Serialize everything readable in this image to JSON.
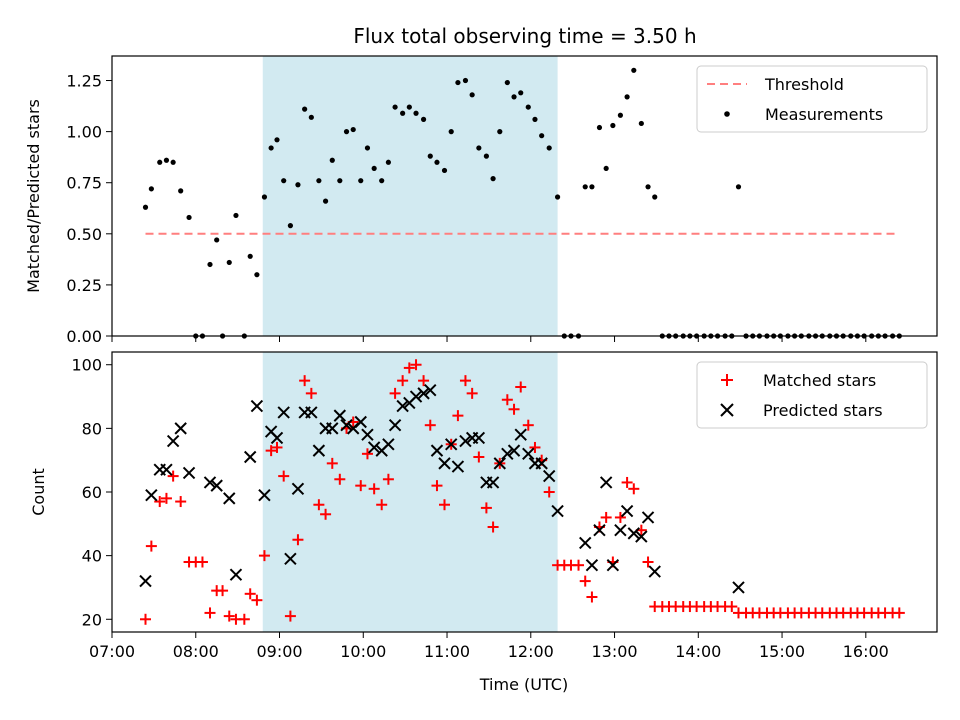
{
  "title": "Flux total observing time = 3.50 h",
  "xlabel": "Time (UTC)",
  "colors": {
    "threshold": "#ff7f7f",
    "shade": "#add8e6",
    "matched": "#ff0000",
    "predicted": "#000000",
    "measurement": "#000000"
  },
  "chart_data": [
    {
      "type": "scatter",
      "ylabel": "Matched/Predicted stars",
      "ylim": [
        0,
        1.37
      ],
      "yticks": [
        0,
        0.25,
        0.5,
        0.75,
        1.0,
        1.25
      ],
      "ytick_labels": [
        "0.00",
        "0.25",
        "0.50",
        "0.75",
        "1.00",
        "1.25"
      ],
      "xlim": [
        7.0,
        16.85
      ],
      "xticks": [
        7,
        8,
        9,
        10,
        11,
        12,
        13,
        14,
        15,
        16
      ],
      "xtick_labels": [
        "07:00",
        "08:00",
        "09:00",
        "10:00",
        "11:00",
        "12:00",
        "13:00",
        "14:00",
        "15:00",
        "16:00"
      ],
      "shaded_interval": [
        8.8,
        12.32
      ],
      "threshold": {
        "name": "Threshold",
        "x": [
          7.4,
          16.4
        ],
        "y": 0.5
      },
      "legend": [
        "Threshold",
        "Measurements"
      ],
      "measurements": [
        [
          7.4,
          0.63
        ],
        [
          7.47,
          0.72
        ],
        [
          7.57,
          0.85
        ],
        [
          7.65,
          0.86
        ],
        [
          7.73,
          0.85
        ],
        [
          7.82,
          0.71
        ],
        [
          7.92,
          0.58
        ],
        [
          8.0,
          0.0
        ],
        [
          8.08,
          0.0
        ],
        [
          8.17,
          0.35
        ],
        [
          8.25,
          0.47
        ],
        [
          8.32,
          0.0
        ],
        [
          8.4,
          0.36
        ],
        [
          8.48,
          0.59
        ],
        [
          8.58,
          0.0
        ],
        [
          8.65,
          0.39
        ],
        [
          8.73,
          0.3
        ],
        [
          8.82,
          0.68
        ],
        [
          8.9,
          0.92
        ],
        [
          8.97,
          0.96
        ],
        [
          9.05,
          0.76
        ],
        [
          9.13,
          0.54
        ],
        [
          9.22,
          0.74
        ],
        [
          9.3,
          1.11
        ],
        [
          9.38,
          1.07
        ],
        [
          9.47,
          0.76
        ],
        [
          9.55,
          0.66
        ],
        [
          9.63,
          0.86
        ],
        [
          9.72,
          0.76
        ],
        [
          9.8,
          1.0
        ],
        [
          9.88,
          1.01
        ],
        [
          9.97,
          0.76
        ],
        [
          10.05,
          0.92
        ],
        [
          10.13,
          0.82
        ],
        [
          10.22,
          0.76
        ],
        [
          10.3,
          0.85
        ],
        [
          10.38,
          1.12
        ],
        [
          10.47,
          1.09
        ],
        [
          10.55,
          1.12
        ],
        [
          10.63,
          1.09
        ],
        [
          10.72,
          1.06
        ],
        [
          10.8,
          0.88
        ],
        [
          10.88,
          0.85
        ],
        [
          10.97,
          0.81
        ],
        [
          11.05,
          1.0
        ],
        [
          11.13,
          1.24
        ],
        [
          11.22,
          1.25
        ],
        [
          11.3,
          1.18
        ],
        [
          11.38,
          0.92
        ],
        [
          11.47,
          0.88
        ],
        [
          11.55,
          0.77
        ],
        [
          11.63,
          1.0
        ],
        [
          11.72,
          1.24
        ],
        [
          11.8,
          1.17
        ],
        [
          11.88,
          1.19
        ],
        [
          11.97,
          1.12
        ],
        [
          12.05,
          1.06
        ],
        [
          12.13,
          0.98
        ],
        [
          12.22,
          0.92
        ],
        [
          12.32,
          0.68
        ],
        [
          12.4,
          0.0
        ],
        [
          12.48,
          0.0
        ],
        [
          12.57,
          0.0
        ],
        [
          12.65,
          0.73
        ],
        [
          12.73,
          0.73
        ],
        [
          12.82,
          1.02
        ],
        [
          12.9,
          0.82
        ],
        [
          12.98,
          1.03
        ],
        [
          13.07,
          1.08
        ],
        [
          13.15,
          1.17
        ],
        [
          13.23,
          1.3
        ],
        [
          13.32,
          1.04
        ],
        [
          13.4,
          0.73
        ],
        [
          13.48,
          0.68
        ],
        [
          13.57,
          0.0
        ],
        [
          13.65,
          0.0
        ],
        [
          13.73,
          0.0
        ],
        [
          13.82,
          0.0
        ],
        [
          13.9,
          0.0
        ],
        [
          13.98,
          0.0
        ],
        [
          14.07,
          0.0
        ],
        [
          14.15,
          0.0
        ],
        [
          14.23,
          0.0
        ],
        [
          14.32,
          0.0
        ],
        [
          14.4,
          0.0
        ],
        [
          14.48,
          0.73
        ],
        [
          14.57,
          0.0
        ],
        [
          14.65,
          0.0
        ],
        [
          14.73,
          0.0
        ],
        [
          14.82,
          0.0
        ],
        [
          14.9,
          0.0
        ],
        [
          14.98,
          0.0
        ],
        [
          15.07,
          0.0
        ],
        [
          15.15,
          0.0
        ],
        [
          15.23,
          0.0
        ],
        [
          15.32,
          0.0
        ],
        [
          15.4,
          0.0
        ],
        [
          15.48,
          0.0
        ],
        [
          15.57,
          0.0
        ],
        [
          15.65,
          0.0
        ],
        [
          15.73,
          0.0
        ],
        [
          15.82,
          0.0
        ],
        [
          15.9,
          0.0
        ],
        [
          15.98,
          0.0
        ],
        [
          16.07,
          0.0
        ],
        [
          16.15,
          0.0
        ],
        [
          16.23,
          0.0
        ],
        [
          16.32,
          0.0
        ],
        [
          16.4,
          0.0
        ]
      ]
    },
    {
      "type": "scatter",
      "ylabel": "Count",
      "ylim": [
        16,
        104
      ],
      "yticks": [
        20,
        40,
        60,
        80,
        100
      ],
      "ytick_labels": [
        "20",
        "40",
        "60",
        "80",
        "100"
      ],
      "xlim": [
        7.0,
        16.85
      ],
      "xticks": [
        7,
        8,
        9,
        10,
        11,
        12,
        13,
        14,
        15,
        16
      ],
      "xtick_labels": [
        "07:00",
        "08:00",
        "09:00",
        "10:00",
        "11:00",
        "12:00",
        "13:00",
        "14:00",
        "15:00",
        "16:00"
      ],
      "shaded_interval": [
        8.8,
        12.32
      ],
      "legend": [
        "Matched stars",
        "Predicted stars"
      ],
      "series": [
        {
          "name": "Matched stars",
          "marker": "+",
          "points": [
            [
              7.4,
              20
            ],
            [
              7.47,
              43
            ],
            [
              7.57,
              57
            ],
            [
              7.65,
              58
            ],
            [
              7.73,
              65
            ],
            [
              7.82,
              57
            ],
            [
              7.92,
              38
            ],
            [
              8.0,
              38
            ],
            [
              8.08,
              38
            ],
            [
              8.17,
              22
            ],
            [
              8.25,
              29
            ],
            [
              8.32,
              29
            ],
            [
              8.4,
              21
            ],
            [
              8.48,
              20
            ],
            [
              8.58,
              20
            ],
            [
              8.65,
              28
            ],
            [
              8.73,
              26
            ],
            [
              8.82,
              40
            ],
            [
              8.9,
              73
            ],
            [
              8.97,
              74
            ],
            [
              9.05,
              65
            ],
            [
              9.13,
              21
            ],
            [
              9.22,
              45
            ],
            [
              9.3,
              95
            ],
            [
              9.38,
              91
            ],
            [
              9.47,
              56
            ],
            [
              9.55,
              53
            ],
            [
              9.63,
              69
            ],
            [
              9.72,
              64
            ],
            [
              9.8,
              80
            ],
            [
              9.88,
              82
            ],
            [
              9.97,
              62
            ],
            [
              10.05,
              72
            ],
            [
              10.13,
              61
            ],
            [
              10.22,
              56
            ],
            [
              10.3,
              64
            ],
            [
              10.38,
              91
            ],
            [
              10.47,
              95
            ],
            [
              10.55,
              99
            ],
            [
              10.63,
              100
            ],
            [
              10.72,
              95
            ],
            [
              10.8,
              81
            ],
            [
              10.88,
              62
            ],
            [
              10.97,
              56
            ],
            [
              11.05,
              75
            ],
            [
              11.13,
              84
            ],
            [
              11.22,
              95
            ],
            [
              11.3,
              91
            ],
            [
              11.38,
              71
            ],
            [
              11.47,
              55
            ],
            [
              11.55,
              49
            ],
            [
              11.63,
              69
            ],
            [
              11.72,
              89
            ],
            [
              11.8,
              86
            ],
            [
              11.88,
              93
            ],
            [
              11.97,
              81
            ],
            [
              12.05,
              74
            ],
            [
              12.13,
              70
            ],
            [
              12.22,
              60
            ],
            [
              12.32,
              37
            ],
            [
              12.4,
              37
            ],
            [
              12.48,
              37
            ],
            [
              12.57,
              37
            ],
            [
              12.65,
              32
            ],
            [
              12.73,
              27
            ],
            [
              12.82,
              49
            ],
            [
              12.9,
              52
            ],
            [
              12.98,
              38
            ],
            [
              13.07,
              52
            ],
            [
              13.15,
              63
            ],
            [
              13.23,
              61
            ],
            [
              13.32,
              48
            ],
            [
              13.4,
              38
            ],
            [
              13.48,
              24
            ],
            [
              13.57,
              24
            ],
            [
              13.65,
              24
            ],
            [
              13.73,
              24
            ],
            [
              13.82,
              24
            ],
            [
              13.9,
              24
            ],
            [
              13.98,
              24
            ],
            [
              14.07,
              24
            ],
            [
              14.15,
              24
            ],
            [
              14.23,
              24
            ],
            [
              14.32,
              24
            ],
            [
              14.4,
              24
            ],
            [
              14.48,
              22
            ],
            [
              14.57,
              22
            ],
            [
              14.65,
              22
            ],
            [
              14.73,
              22
            ],
            [
              14.82,
              22
            ],
            [
              14.9,
              22
            ],
            [
              14.98,
              22
            ],
            [
              15.07,
              22
            ],
            [
              15.15,
              22
            ],
            [
              15.23,
              22
            ],
            [
              15.32,
              22
            ],
            [
              15.4,
              22
            ],
            [
              15.48,
              22
            ],
            [
              15.57,
              22
            ],
            [
              15.65,
              22
            ],
            [
              15.73,
              22
            ],
            [
              15.82,
              22
            ],
            [
              15.9,
              22
            ],
            [
              15.98,
              22
            ],
            [
              16.07,
              22
            ],
            [
              16.15,
              22
            ],
            [
              16.23,
              22
            ],
            [
              16.32,
              22
            ],
            [
              16.4,
              22
            ]
          ]
        },
        {
          "name": "Predicted stars",
          "marker": "x",
          "points": [
            [
              7.4,
              32
            ],
            [
              7.47,
              59
            ],
            [
              7.57,
              67
            ],
            [
              7.65,
              67
            ],
            [
              7.73,
              76
            ],
            [
              7.82,
              80
            ],
            [
              7.92,
              66
            ],
            [
              8.17,
              63
            ],
            [
              8.25,
              62
            ],
            [
              8.4,
              58
            ],
            [
              8.48,
              34
            ],
            [
              8.65,
              71
            ],
            [
              8.73,
              87
            ],
            [
              8.82,
              59
            ],
            [
              8.9,
              79
            ],
            [
              8.97,
              77
            ],
            [
              9.05,
              85
            ],
            [
              9.13,
              39
            ],
            [
              9.22,
              61
            ],
            [
              9.3,
              85
            ],
            [
              9.38,
              85
            ],
            [
              9.47,
              73
            ],
            [
              9.55,
              80
            ],
            [
              9.63,
              80
            ],
            [
              9.72,
              84
            ],
            [
              9.8,
              81
            ],
            [
              9.88,
              80
            ],
            [
              9.97,
              82
            ],
            [
              10.05,
              78
            ],
            [
              10.13,
              74
            ],
            [
              10.22,
              73
            ],
            [
              10.3,
              75
            ],
            [
              10.38,
              81
            ],
            [
              10.47,
              87
            ],
            [
              10.55,
              88
            ],
            [
              10.63,
              90
            ],
            [
              10.72,
              91
            ],
            [
              10.8,
              92
            ],
            [
              10.88,
              73
            ],
            [
              10.97,
              69
            ],
            [
              11.05,
              75
            ],
            [
              11.13,
              68
            ],
            [
              11.22,
              76
            ],
            [
              11.3,
              77
            ],
            [
              11.38,
              77
            ],
            [
              11.47,
              63
            ],
            [
              11.55,
              63
            ],
            [
              11.63,
              69
            ],
            [
              11.72,
              72
            ],
            [
              11.8,
              73
            ],
            [
              11.88,
              78
            ],
            [
              11.97,
              72
            ],
            [
              12.05,
              69
            ],
            [
              12.13,
              69
            ],
            [
              12.22,
              65
            ],
            [
              12.32,
              54
            ],
            [
              12.65,
              44
            ],
            [
              12.73,
              37
            ],
            [
              12.82,
              48
            ],
            [
              12.9,
              63
            ],
            [
              12.98,
              37
            ],
            [
              13.07,
              48
            ],
            [
              13.15,
              54
            ],
            [
              13.23,
              47
            ],
            [
              13.32,
              46
            ],
            [
              13.4,
              52
            ],
            [
              13.48,
              35
            ],
            [
              14.48,
              30
            ]
          ]
        }
      ]
    }
  ]
}
